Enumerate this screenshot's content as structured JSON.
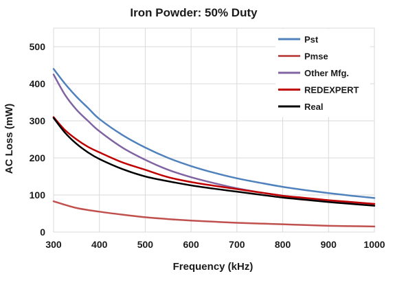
{
  "chart_data": {
    "type": "line",
    "title": "Iron Powder: 50% Duty",
    "xlabel": "Frequency (kHz)",
    "ylabel": "AC Loss (mW)",
    "xlim": [
      300,
      1000
    ],
    "ylim": [
      0,
      550
    ],
    "xticks": [
      300,
      400,
      500,
      600,
      700,
      800,
      900,
      1000
    ],
    "yticks": [
      0,
      100,
      200,
      300,
      400,
      500
    ],
    "grid": true,
    "legend_position": "top-right",
    "series": [
      {
        "name": "Pst",
        "color": "#4f81bd",
        "x": [
          300,
          325,
          350,
          375,
          400,
          450,
          500,
          550,
          600,
          650,
          700,
          750,
          800,
          850,
          900,
          950,
          1000
        ],
        "y": [
          440,
          400,
          365,
          335,
          305,
          262,
          228,
          200,
          178,
          160,
          145,
          133,
          122,
          113,
          105,
          98,
          92
        ]
      },
      {
        "name": "Pmse",
        "color": "#c0504d",
        "x": [
          300,
          350,
          400,
          450,
          500,
          550,
          600,
          650,
          700,
          750,
          800,
          850,
          900,
          950,
          1000
        ],
        "y": [
          83,
          65,
          55,
          47,
          40,
          35,
          31,
          28,
          25,
          23,
          21,
          19,
          17,
          16,
          15
        ]
      },
      {
        "name": "Other Mfg.",
        "color": "#8064a2",
        "x": [
          300,
          325,
          350,
          375,
          400,
          450,
          500,
          550,
          600,
          650,
          700,
          750,
          800,
          850,
          900,
          950,
          1000
        ],
        "y": [
          425,
          370,
          330,
          300,
          272,
          228,
          195,
          168,
          148,
          132,
          118,
          107,
          98,
          91,
          85,
          80,
          76
        ]
      },
      {
        "name": "REDEXPERT",
        "color": "#c00000",
        "x": [
          300,
          325,
          350,
          375,
          400,
          450,
          500,
          550,
          600,
          650,
          700,
          750,
          800,
          850,
          900,
          950,
          1000
        ],
        "y": [
          310,
          275,
          250,
          230,
          215,
          188,
          168,
          148,
          135,
          125,
          116,
          107,
          98,
          92,
          86,
          81,
          76
        ]
      },
      {
        "name": "Real",
        "color": "#000000",
        "x": [
          300,
          325,
          350,
          375,
          400,
          450,
          500,
          550,
          600,
          650,
          700,
          750,
          800,
          850,
          900,
          950,
          1000
        ],
        "y": [
          308,
          268,
          238,
          215,
          197,
          170,
          150,
          137,
          126,
          117,
          109,
          101,
          93,
          87,
          81,
          76,
          71
        ]
      }
    ]
  }
}
